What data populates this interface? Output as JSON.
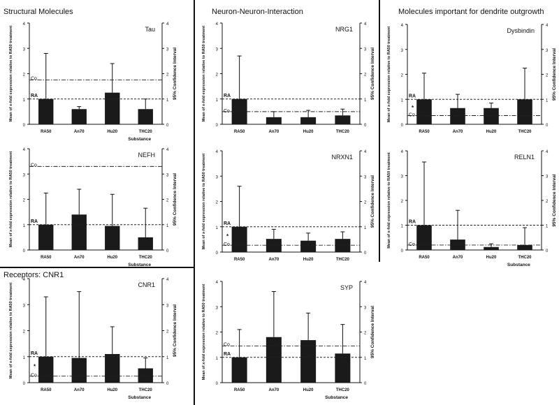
{
  "sections": [
    {
      "key": "structural",
      "title": "Structural Molecules"
    },
    {
      "key": "neuron",
      "title": "Neuron-Neuron-Interaction"
    },
    {
      "key": "dendrite",
      "title": "Molecules important for dendrite outgrowth"
    },
    {
      "key": "receptors",
      "title": "Receptors: CNR1"
    }
  ],
  "common": {
    "ylabel_left": "Mean of x-fold expression relative to RA50 treatment",
    "ylabel_right": "95% Confidence Interval",
    "xlabel": "Substance",
    "ref_label_ra": "RA",
    "ref_label_co": "Co",
    "star": "*",
    "ylim": [
      0,
      4
    ],
    "yticks": [
      0,
      1,
      2,
      3,
      4
    ],
    "categories": [
      "RA50",
      "An70",
      "Hu20",
      "THC20"
    ]
  },
  "chart_data": [
    {
      "type": "bar",
      "title": "Tau",
      "categories": [
        "RA50",
        "An70",
        "Hu20",
        "THC20"
      ],
      "values": [
        1.0,
        0.6,
        1.25,
        0.6
      ],
      "error_upper": [
        2.8,
        0.7,
        2.4,
        1.0
      ],
      "ra_line": 1.0,
      "co_line": 1.75,
      "star": false,
      "xlabel": "Substance",
      "show_xlabel": true,
      "ylim": [
        0,
        4
      ]
    },
    {
      "type": "bar",
      "title": "NEFH",
      "categories": [
        "RA50",
        "An70",
        "Hu20",
        "THC20"
      ],
      "values": [
        1.0,
        1.4,
        0.95,
        0.5
      ],
      "error_upper": [
        2.25,
        2.4,
        2.2,
        1.65
      ],
      "ra_line": 1.0,
      "co_line": 3.3,
      "star": false,
      "xlabel": "Substance",
      "show_xlabel": true,
      "ylim": [
        0,
        4
      ]
    },
    {
      "type": "bar",
      "title": "CNR1",
      "categories": [
        "RA50",
        "An70",
        "Hu20",
        "THC20"
      ],
      "values": [
        1.0,
        0.95,
        1.1,
        0.55
      ],
      "error_upper": [
        3.3,
        3.5,
        2.15,
        0.95
      ],
      "ra_line": 1.0,
      "co_line": 0.25,
      "star": true,
      "xlabel": "Substance",
      "show_xlabel": true,
      "ylim": [
        0,
        4
      ]
    },
    {
      "type": "bar",
      "title": "NRG1",
      "categories": [
        "RA50",
        "An70",
        "Hu20",
        "THC20"
      ],
      "values": [
        1.0,
        0.28,
        0.28,
        0.35
      ],
      "error_upper": [
        2.7,
        0.5,
        0.55,
        0.6
      ],
      "ra_line": 1.0,
      "co_line": 0.5,
      "star": false,
      "xlabel": "Substance",
      "show_xlabel": false,
      "ylim": [
        0,
        4
      ]
    },
    {
      "type": "bar",
      "title": "NRXN1",
      "categories": [
        "RA50",
        "An70",
        "Hu20",
        "THC20"
      ],
      "values": [
        1.0,
        0.52,
        0.45,
        0.52
      ],
      "error_upper": [
        2.6,
        0.9,
        0.75,
        0.8
      ],
      "ra_line": 1.0,
      "co_line": 0.27,
      "star": true,
      "xlabel": "Substance",
      "show_xlabel": false,
      "ylim": [
        0,
        4
      ]
    },
    {
      "type": "bar",
      "title": "SYP",
      "categories": [
        "RA50",
        "An70",
        "Hu20",
        "THC20"
      ],
      "values": [
        1.0,
        1.8,
        1.68,
        1.15
      ],
      "error_upper": [
        2.1,
        3.6,
        2.75,
        2.3
      ],
      "ra_line": 1.0,
      "co_line": 1.45,
      "star": false,
      "xlabel": "Substance",
      "show_xlabel": true,
      "ylim": [
        0,
        4
      ]
    },
    {
      "type": "bar",
      "title": "Dysbindin",
      "categories": [
        "RA50",
        "An70",
        "Hu20",
        "THC20"
      ],
      "values": [
        1.0,
        0.65,
        0.65,
        1.0
      ],
      "error_upper": [
        2.05,
        1.2,
        0.85,
        2.25
      ],
      "ra_line": 1.0,
      "co_line": 0.35,
      "star": true,
      "xlabel": "Substance",
      "show_xlabel": false,
      "ylim": [
        0,
        4
      ]
    },
    {
      "type": "bar",
      "title": "RELN1",
      "categories": [
        "RA50",
        "An70",
        "Hu20",
        "THC20"
      ],
      "values": [
        1.0,
        0.42,
        0.12,
        0.2
      ],
      "error_upper": [
        3.55,
        1.6,
        0.25,
        0.9
      ],
      "ra_line": 1.0,
      "co_line": 0.2,
      "star": false,
      "xlabel": "Substance",
      "show_xlabel": true,
      "ylim": [
        0,
        4
      ]
    }
  ]
}
